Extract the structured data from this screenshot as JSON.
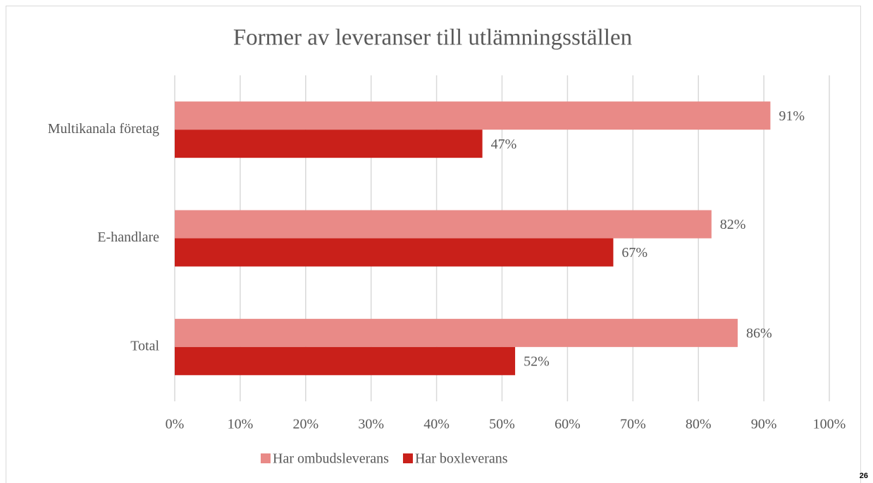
{
  "chart_data": {
    "type": "hbar",
    "title": "Former av leveranser till utlämningsställen",
    "categories": [
      "Multikanala företag",
      "E-handlare",
      "Total"
    ],
    "series": [
      {
        "name": "Har ombudsleverans",
        "color": "#e98a87",
        "values": [
          91,
          82,
          86
        ],
        "value_labels": [
          "91%",
          "82%",
          "86%"
        ]
      },
      {
        "name": "Har boxleverans",
        "color": "#c9201a",
        "values": [
          47,
          67,
          52
        ],
        "value_labels": [
          "47%",
          "67%",
          "52%"
        ]
      }
    ],
    "xlim": [
      0,
      100
    ],
    "xticks": [
      {
        "value": 0,
        "label": "0%"
      },
      {
        "value": 10,
        "label": "10%"
      },
      {
        "value": 20,
        "label": "20%"
      },
      {
        "value": 30,
        "label": "30%"
      },
      {
        "value": 40,
        "label": "40%"
      },
      {
        "value": 50,
        "label": "50%"
      },
      {
        "value": 60,
        "label": "60%"
      },
      {
        "value": 70,
        "label": "70%"
      },
      {
        "value": 80,
        "label": "80%"
      },
      {
        "value": 90,
        "label": "90%"
      },
      {
        "value": 100,
        "label": "100%"
      }
    ],
    "grid": true,
    "legend": "bottom"
  },
  "page_number": "26"
}
